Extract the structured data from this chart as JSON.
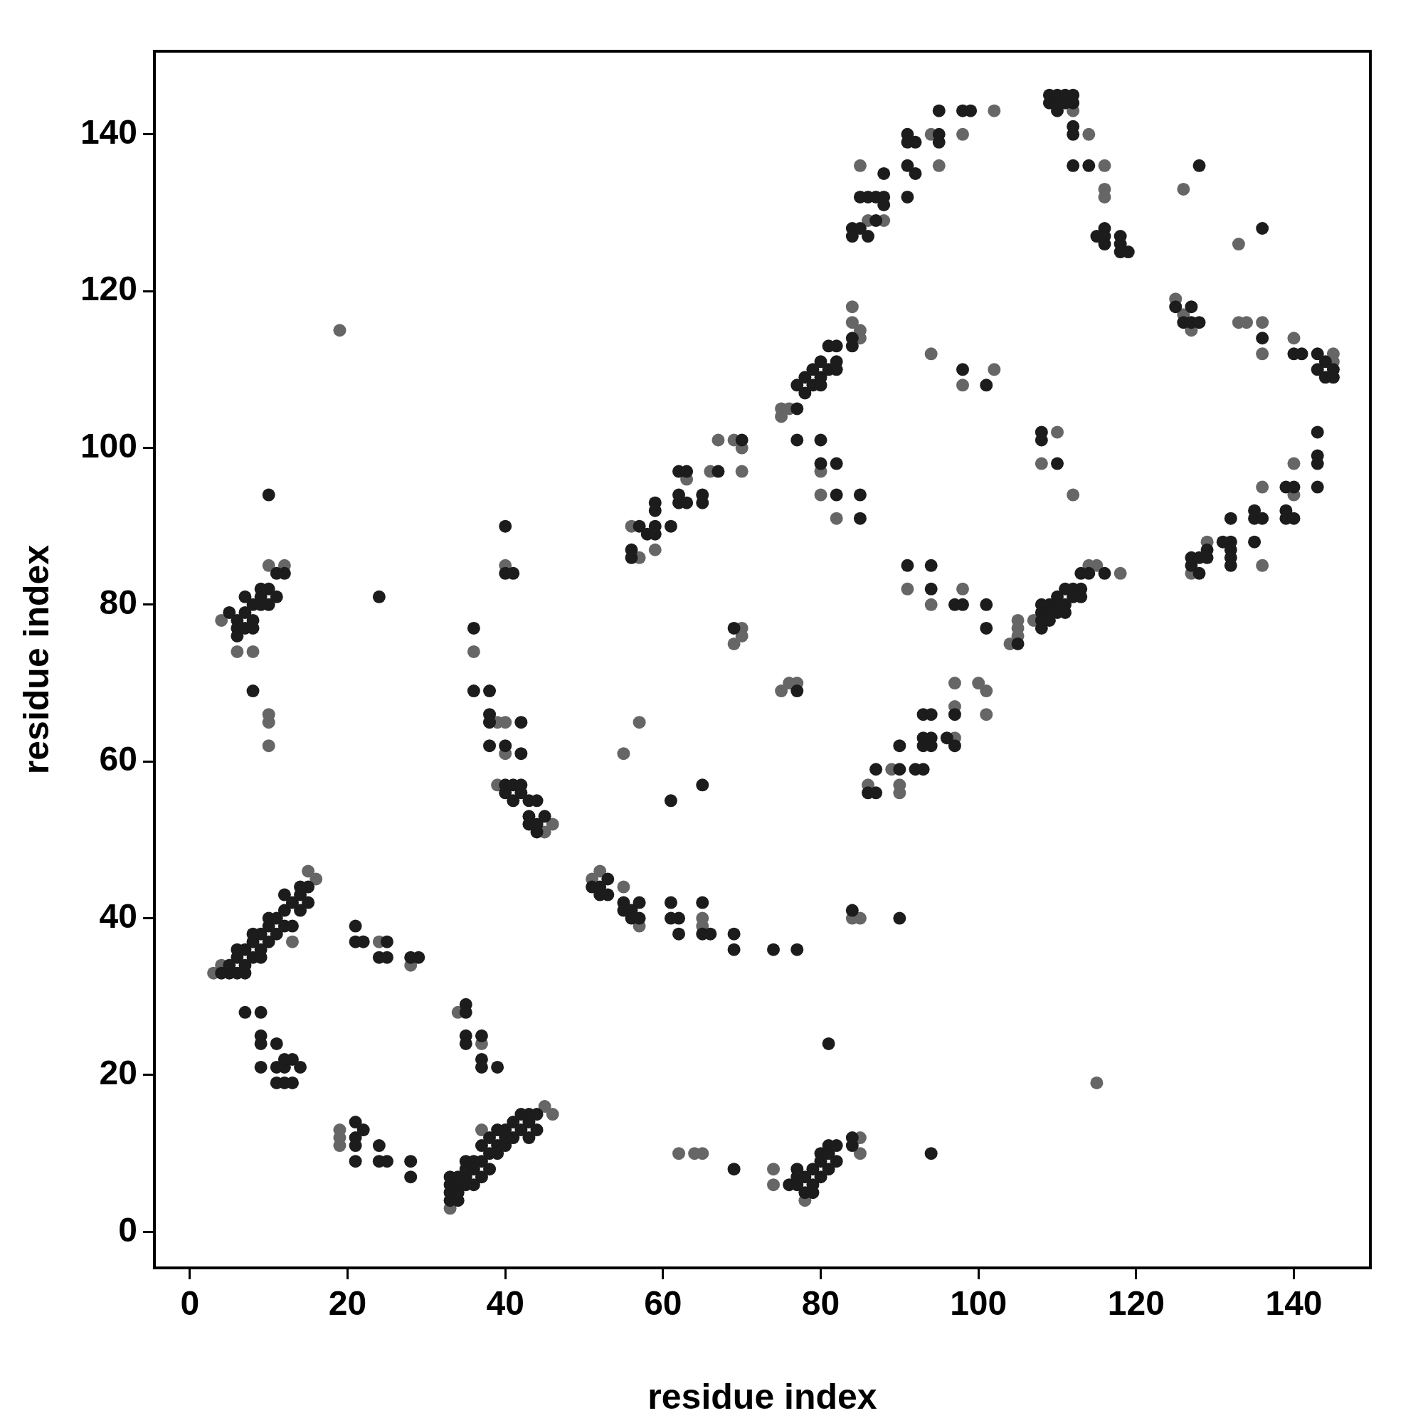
{
  "chart_data": {
    "type": "scatter",
    "xlabel": "residue index",
    "ylabel": "residue index",
    "xlim": [
      -4.5,
      149.7
    ],
    "ylim": [
      -4.6,
      150.6
    ],
    "xticks": [
      0,
      20,
      40,
      60,
      80,
      100,
      120,
      140
    ],
    "yticks": [
      0,
      20,
      40,
      60,
      80,
      100,
      120,
      140
    ],
    "marker": "circle",
    "legend": false,
    "series": [
      {
        "color": "#1c1c1c",
        "x": [
          4,
          5,
          5,
          6,
          6,
          6,
          7,
          7,
          7,
          8,
          8,
          8,
          9,
          9,
          9,
          10,
          10,
          10,
          11,
          11,
          12,
          12,
          12,
          13,
          13,
          14,
          14,
          14,
          15,
          15,
          7,
          9,
          9,
          9,
          9,
          11,
          11,
          11,
          12,
          12,
          13,
          13,
          14,
          12,
          5,
          6,
          6,
          6,
          7,
          7,
          7,
          8,
          8,
          8,
          8,
          9,
          9,
          9,
          10,
          10,
          11,
          11,
          12,
          10,
          24,
          21,
          21,
          21,
          21,
          22,
          24,
          24,
          25,
          28,
          28,
          21,
          21,
          22,
          24,
          25,
          25,
          28,
          29,
          33,
          33,
          33,
          33,
          34,
          34,
          34,
          34,
          35,
          35,
          35,
          35,
          36,
          36,
          36,
          37,
          37,
          37,
          38,
          38,
          38,
          39,
          39,
          39,
          40,
          40,
          40,
          41,
          41,
          42,
          42,
          43,
          43,
          43,
          44,
          44,
          35,
          35,
          35,
          35,
          37,
          37,
          37,
          39,
          36,
          36,
          38,
          38,
          38,
          38,
          40,
          40,
          40,
          41,
          41,
          42,
          42,
          42,
          42,
          43,
          43,
          43,
          44,
          44,
          44,
          45,
          40,
          40,
          41,
          51,
          52,
          52,
          53,
          53,
          55,
          55,
          56,
          56,
          57,
          57,
          61,
          61,
          62,
          62,
          65,
          65,
          66,
          69,
          69,
          74,
          77,
          61,
          65,
          69,
          56,
          56,
          57,
          58,
          59,
          59,
          59,
          59,
          61,
          62,
          62,
          62,
          63,
          63,
          65,
          65,
          67,
          70,
          69,
          76,
          77,
          77,
          77,
          78,
          78,
          79,
          79,
          79,
          80,
          80,
          80,
          81,
          81,
          81,
          82,
          82,
          84,
          84,
          81,
          94,
          77,
          77,
          78,
          78,
          79,
          79,
          80,
          80,
          80,
          81,
          81,
          82,
          82,
          82,
          84,
          84,
          77,
          80,
          80,
          82,
          82,
          85,
          85,
          77,
          84,
          90,
          84,
          84,
          85,
          85,
          86,
          86,
          87,
          87,
          88,
          88,
          88,
          91,
          91,
          91,
          91,
          92,
          92,
          95,
          95,
          95,
          98,
          99,
          109,
          109,
          110,
          110,
          110,
          111,
          111,
          112,
          112,
          112,
          112,
          112,
          114,
          116,
          116,
          116,
          115,
          118,
          118,
          118,
          119,
          86,
          87,
          87,
          90,
          90,
          92,
          93,
          93,
          93,
          93,
          94,
          94,
          94,
          96,
          97,
          97,
          91,
          94,
          94,
          97,
          98,
          101,
          101,
          105,
          98,
          101,
          108,
          108,
          110,
          108,
          108,
          108,
          108,
          109,
          109,
          109,
          110,
          110,
          110,
          111,
          111,
          111,
          112,
          112,
          113,
          113,
          113,
          114,
          116,
          125,
          126,
          127,
          127,
          128,
          128,
          136,
          136,
          140,
          141,
          143,
          143,
          144,
          144,
          145,
          145,
          127,
          127,
          128,
          128,
          129,
          129,
          131,
          132,
          132,
          132,
          132,
          132,
          135,
          135,
          135,
          136,
          139,
          139,
          139,
          140,
          140,
          143,
          143,
          143,
          143
        ],
        "values": [
          33,
          33,
          34,
          33,
          35,
          36,
          33,
          34,
          36,
          35,
          37,
          38,
          35,
          36,
          38,
          37,
          39,
          40,
          38,
          40,
          39,
          41,
          43,
          39,
          42,
          41,
          43,
          44,
          42,
          44,
          28,
          28,
          25,
          24,
          21,
          24,
          21,
          19,
          21,
          19,
          22,
          19,
          21,
          22,
          79,
          78,
          77,
          76,
          81,
          79,
          77,
          80,
          78,
          77,
          69,
          82,
          80,
          81,
          82,
          80,
          81,
          84,
          84,
          94,
          81,
          14,
          12,
          11,
          9,
          13,
          11,
          9,
          9,
          9,
          7,
          39,
          37,
          37,
          35,
          37,
          35,
          35,
          35,
          4,
          5,
          6,
          7,
          4,
          5,
          6,
          7,
          6,
          7,
          8,
          9,
          6,
          8,
          9,
          7,
          9,
          11,
          8,
          10,
          12,
          10,
          11,
          13,
          11,
          12,
          13,
          12,
          14,
          13,
          15,
          12,
          14,
          15,
          13,
          15,
          29,
          28,
          25,
          24,
          25,
          22,
          21,
          21,
          77,
          69,
          69,
          66,
          65,
          62,
          62,
          57,
          56,
          57,
          55,
          57,
          56,
          65,
          61,
          53,
          52,
          55,
          55,
          52,
          51,
          53,
          90,
          84,
          84,
          44,
          44,
          43,
          45,
          43,
          42,
          41,
          41,
          40,
          42,
          40,
          42,
          40,
          40,
          38,
          42,
          38,
          38,
          38,
          36,
          36,
          36,
          55,
          57,
          8,
          87,
          86,
          90,
          89,
          93,
          92,
          90,
          89,
          90,
          94,
          93,
          97,
          97,
          93,
          94,
          93,
          97,
          101,
          77,
          6,
          6,
          8,
          7,
          5,
          7,
          6,
          5,
          8,
          7,
          9,
          10,
          8,
          10,
          11,
          9,
          11,
          12,
          11,
          24,
          10,
          105,
          108,
          107,
          109,
          110,
          108,
          111,
          109,
          108,
          110,
          113,
          111,
          113,
          110,
          113,
          114,
          101,
          101,
          98,
          98,
          94,
          94,
          91,
          69,
          41,
          40,
          128,
          127,
          128,
          132,
          132,
          127,
          132,
          129,
          135,
          132,
          131,
          140,
          139,
          136,
          132,
          139,
          135,
          143,
          140,
          139,
          143,
          143,
          145,
          144,
          145,
          144,
          143,
          145,
          144,
          145,
          144,
          141,
          140,
          136,
          136,
          128,
          127,
          126,
          127,
          127,
          126,
          125,
          125,
          56,
          59,
          56,
          62,
          59,
          59,
          63,
          62,
          59,
          66,
          66,
          63,
          62,
          63,
          66,
          62,
          85,
          85,
          82,
          80,
          80,
          80,
          77,
          75,
          110,
          108,
          102,
          101,
          98,
          80,
          79,
          78,
          77,
          80,
          79,
          78,
          81,
          80,
          79,
          82,
          80,
          79,
          82,
          81,
          82,
          81,
          84,
          84,
          84,
          118,
          116,
          118,
          116,
          116,
          136,
          114,
          128,
          112,
          112,
          112,
          110,
          111,
          109,
          110,
          109,
          86,
          85,
          86,
          84,
          87,
          86,
          88,
          91,
          88,
          87,
          86,
          85,
          92,
          91,
          88,
          91,
          95,
          92,
          91,
          95,
          91,
          102,
          99,
          98,
          95
        ]
      },
      {
        "color": "#666666",
        "x": [
          3,
          4,
          4,
          6,
          8,
          10,
          10,
          10,
          10,
          12,
          13,
          15,
          16,
          19,
          19,
          19,
          19,
          24,
          28,
          33,
          37,
          45,
          46,
          34,
          37,
          36,
          39,
          39,
          40,
          40,
          40,
          45,
          46,
          51,
          52,
          55,
          57,
          55,
          57,
          62,
          64,
          65,
          65,
          65,
          56,
          57,
          59,
          63,
          66,
          67,
          69,
          70,
          70,
          69,
          70,
          70,
          74,
          74,
          78,
          85,
          85,
          115,
          75,
          75,
          76,
          84,
          84,
          85,
          85,
          80,
          80,
          82,
          75,
          76,
          77,
          84,
          85,
          85,
          86,
          88,
          94,
          95,
          98,
          102,
          112,
          114,
          116,
          116,
          116,
          86,
          89,
          90,
          90,
          94,
          97,
          97,
          97,
          100,
          101,
          101,
          91,
          98,
          94,
          98,
          102,
          108,
          110,
          112,
          104,
          105,
          105,
          105,
          107,
          114,
          115,
          118,
          125,
          126,
          127,
          126,
          133,
          134,
          136,
          136,
          133,
          140,
          145,
          127,
          129,
          136,
          136,
          140,
          140,
          145
        ],
        "values": [
          33,
          34,
          78,
          74,
          74,
          85,
          66,
          65,
          62,
          85,
          37,
          46,
          45,
          115,
          13,
          12,
          11,
          37,
          34,
          3,
          13,
          16,
          15,
          28,
          24,
          74,
          65,
          57,
          65,
          61,
          85,
          51,
          52,
          45,
          46,
          44,
          39,
          61,
          65,
          10,
          10,
          10,
          40,
          39,
          90,
          86,
          87,
          96,
          97,
          101,
          101,
          100,
          97,
          75,
          77,
          76,
          8,
          6,
          4,
          12,
          10,
          19,
          105,
          104,
          105,
          118,
          116,
          115,
          114,
          97,
          94,
          91,
          69,
          70,
          70,
          40,
          40,
          136,
          129,
          129,
          140,
          136,
          140,
          143,
          143,
          140,
          136,
          133,
          132,
          57,
          59,
          57,
          56,
          80,
          70,
          67,
          63,
          70,
          69,
          66,
          82,
          82,
          112,
          108,
          110,
          98,
          102,
          94,
          75,
          78,
          77,
          76,
          78,
          85,
          85,
          84,
          119,
          117,
          115,
          133,
          116,
          116,
          116,
          112,
          126,
          114,
          112,
          84,
          88,
          95,
          85,
          98,
          94,
          111
        ]
      }
    ]
  }
}
